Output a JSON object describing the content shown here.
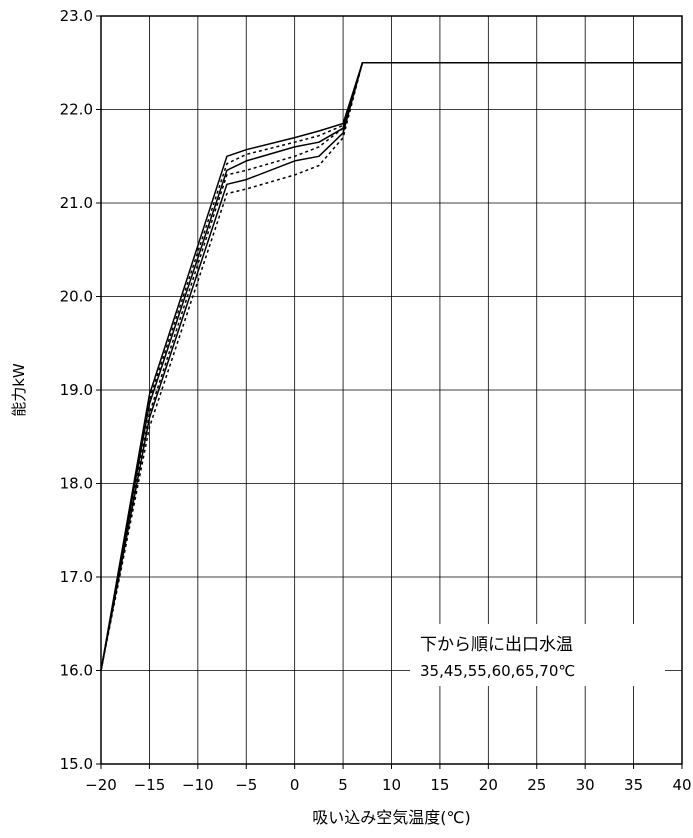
{
  "chart_data": {
    "type": "line",
    "title": "",
    "xlabel": "吸い込み空気温度(℃)",
    "ylabel": "能力kW",
    "xlim": [
      -20,
      40
    ],
    "ylim": [
      15.0,
      23.0
    ],
    "x_ticks": [
      "−20",
      "−15",
      "−10",
      "−5",
      "0",
      "5",
      "10",
      "15",
      "20",
      "25",
      "30",
      "35",
      "40"
    ],
    "y_ticks": [
      "15.0",
      "16.0",
      "17.0",
      "18.0",
      "19.0",
      "20.0",
      "21.0",
      "22.0",
      "23.0"
    ],
    "grid": true,
    "legend": "none",
    "annotation_line1": "下から順に出口水温",
    "annotation_line2": "35,45,55,60,65,70℃",
    "series": [
      {
        "style": "dotted",
        "color": "#000000",
        "points": [
          [
            -20,
            16.0
          ],
          [
            -15,
            18.6
          ],
          [
            -7,
            21.1
          ],
          [
            -5,
            21.15
          ],
          [
            0,
            21.3
          ],
          [
            2.5,
            21.4
          ],
          [
            5,
            21.7
          ],
          [
            7,
            22.5
          ],
          [
            40,
            22.5
          ]
        ]
      },
      {
        "style": "solid",
        "color": "#000000",
        "points": [
          [
            -20,
            16.0
          ],
          [
            -15,
            18.7
          ],
          [
            -7,
            21.2
          ],
          [
            -5,
            21.25
          ],
          [
            0,
            21.45
          ],
          [
            2.5,
            21.5
          ],
          [
            5,
            21.75
          ],
          [
            7,
            22.5
          ],
          [
            40,
            22.5
          ]
        ]
      },
      {
        "style": "dotted",
        "color": "#000000",
        "points": [
          [
            -20,
            16.0
          ],
          [
            -15,
            18.75
          ],
          [
            -7,
            21.3
          ],
          [
            -5,
            21.35
          ],
          [
            0,
            21.5
          ],
          [
            2.5,
            21.6
          ],
          [
            5,
            21.8
          ],
          [
            7,
            22.5
          ],
          [
            40,
            22.5
          ]
        ]
      },
      {
        "style": "solid",
        "color": "#000000",
        "points": [
          [
            -20,
            16.0
          ],
          [
            -15,
            18.85
          ],
          [
            -7,
            21.35
          ],
          [
            -5,
            21.45
          ],
          [
            0,
            21.6
          ],
          [
            2.5,
            21.65
          ],
          [
            5,
            21.8
          ],
          [
            7,
            22.5
          ],
          [
            40,
            22.5
          ]
        ]
      },
      {
        "style": "dotted",
        "color": "#000000",
        "points": [
          [
            -20,
            16.0
          ],
          [
            -15,
            18.9
          ],
          [
            -7,
            21.42
          ],
          [
            -5,
            21.52
          ],
          [
            0,
            21.65
          ],
          [
            2.5,
            21.72
          ],
          [
            5,
            21.83
          ],
          [
            7,
            22.5
          ],
          [
            40,
            22.5
          ]
        ]
      },
      {
        "style": "solid",
        "color": "#000000",
        "points": [
          [
            -20,
            16.0
          ],
          [
            -15,
            18.95
          ],
          [
            -7,
            21.5
          ],
          [
            -5,
            21.57
          ],
          [
            0,
            21.7
          ],
          [
            2.5,
            21.77
          ],
          [
            5,
            21.85
          ],
          [
            7,
            22.5
          ],
          [
            40,
            22.5
          ]
        ]
      }
    ]
  }
}
